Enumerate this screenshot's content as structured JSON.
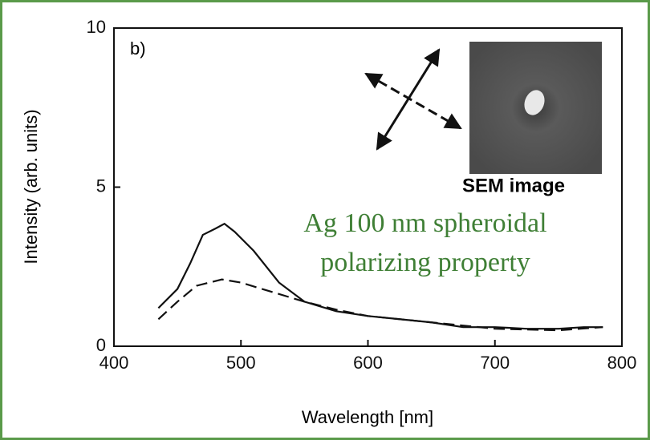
{
  "chart_data": {
    "type": "line",
    "xlabel": "Wavelength [nm]",
    "ylabel": "Intensity (arb. units)",
    "annotations": [
      "b)",
      "SEM image",
      "Ag 100 nm spheroidal",
      "polarizing property"
    ],
    "xlim": [
      400,
      800
    ],
    "xticks": [
      400,
      500,
      600,
      700,
      800
    ],
    "ylim": [
      0,
      10
    ],
    "yticks": [
      0,
      5,
      10
    ],
    "series": [
      {
        "style": "solid",
        "color": "#111111",
        "x": [
          435,
          450,
          460,
          470,
          480,
          487,
          495,
          510,
          530,
          550,
          575,
          600,
          625,
          650,
          675,
          700,
          725,
          750,
          770,
          785
        ],
        "values": [
          1.2,
          1.8,
          2.6,
          3.5,
          3.7,
          3.85,
          3.6,
          3.0,
          2.0,
          1.4,
          1.1,
          0.95,
          0.85,
          0.75,
          0.6,
          0.6,
          0.55,
          0.55,
          0.6,
          0.6
        ]
      },
      {
        "style": "dashed",
        "color": "#111111",
        "x": [
          435,
          450,
          465,
          485,
          500,
          525,
          550,
          575,
          600,
          650,
          700,
          750,
          785
        ],
        "values": [
          0.85,
          1.4,
          1.9,
          2.1,
          2.0,
          1.7,
          1.4,
          1.15,
          0.95,
          0.75,
          0.55,
          0.5,
          0.6
        ]
      }
    ]
  }
}
